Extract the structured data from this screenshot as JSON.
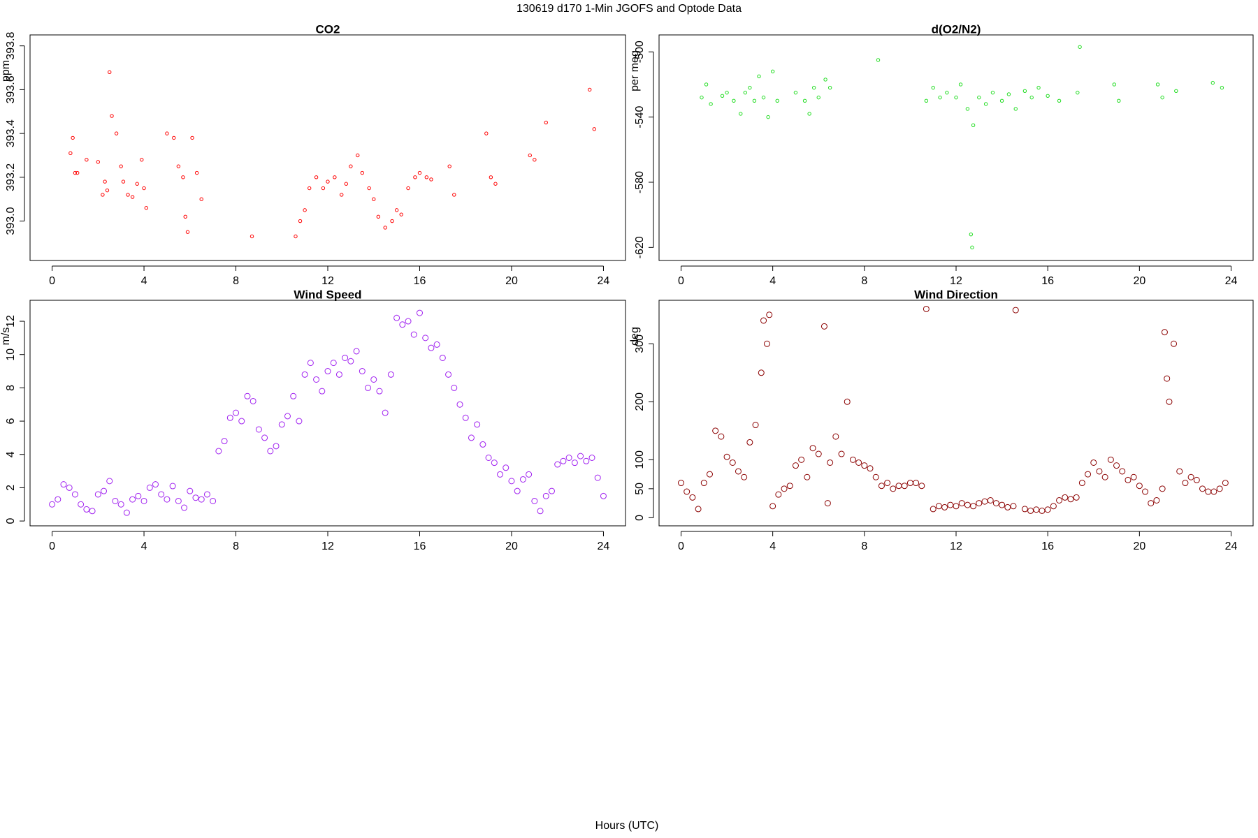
{
  "title": "130619   d170   1-Min  JGOFS and Optode Data",
  "x_label": "Hours (UTC)",
  "chart_data": [
    {
      "type": "scatter",
      "title": "CO2",
      "y_label": "ppm",
      "color": "#ff0000",
      "marker_size": 2.2,
      "xlim": [
        -0.96,
        24.96
      ],
      "xticks": [
        0,
        4,
        8,
        12,
        16,
        20,
        24
      ],
      "ylim": [
        392.82,
        393.85
      ],
      "yticks": [
        {
          "value": 393,
          "label": "393.0"
        },
        393.2,
        393.4,
        393.6,
        393.8
      ],
      "x": [
        0.8,
        0.9,
        1.0,
        1.1,
        1.5,
        2.0,
        2.2,
        2.3,
        2.4,
        2.5,
        2.6,
        2.8,
        3.0,
        3.1,
        3.3,
        3.5,
        3.7,
        3.9,
        4.0,
        4.1,
        5.0,
        5.3,
        5.5,
        5.7,
        5.8,
        5.9,
        6.1,
        6.3,
        6.5,
        8.7,
        10.6,
        10.8,
        11.0,
        11.2,
        11.5,
        11.8,
        12.0,
        12.3,
        12.6,
        12.8,
        13.0,
        13.3,
        13.5,
        13.8,
        14.0,
        14.2,
        14.5,
        14.8,
        15.0,
        15.2,
        15.5,
        15.8,
        16.0,
        16.3,
        16.5,
        17.3,
        17.5,
        18.9,
        19.1,
        19.3,
        20.8,
        21.0,
        21.5,
        23.4,
        23.6
      ],
      "values": [
        393.31,
        393.38,
        393.22,
        393.22,
        393.28,
        393.27,
        393.12,
        393.18,
        393.14,
        393.68,
        393.48,
        393.4,
        393.25,
        393.18,
        393.12,
        393.11,
        393.17,
        393.28,
        393.15,
        393.06,
        393.4,
        393.38,
        393.25,
        393.2,
        393.02,
        392.95,
        393.38,
        393.22,
        393.1,
        392.93,
        392.93,
        393.0,
        393.05,
        393.15,
        393.2,
        393.15,
        393.18,
        393.2,
        393.12,
        393.17,
        393.25,
        393.3,
        393.22,
        393.15,
        393.1,
        393.02,
        392.97,
        393.0,
        393.05,
        393.03,
        393.15,
        393.2,
        393.22,
        393.2,
        393.19,
        393.25,
        393.12,
        393.4,
        393.2,
        393.17,
        393.3,
        393.28,
        393.45,
        393.6,
        393.42
      ]
    },
    {
      "type": "scatter",
      "title": "d(O2/N2)",
      "y_label": "per meg",
      "color": "#22dd22",
      "marker_size": 2.2,
      "xlim": [
        -0.96,
        24.96
      ],
      "xticks": [
        0,
        4,
        8,
        12,
        16,
        20,
        24
      ],
      "ylim": [
        -628,
        -489.6
      ],
      "yticks": [
        -500,
        -540,
        -580,
        -620
      ],
      "x": [
        0.9,
        1.1,
        1.3,
        1.8,
        2.0,
        2.3,
        2.6,
        2.8,
        3.0,
        3.2,
        3.4,
        3.6,
        3.8,
        4.0,
        4.2,
        5.0,
        5.4,
        5.6,
        5.8,
        6.0,
        6.3,
        6.5,
        8.6,
        10.7,
        11.0,
        11.3,
        11.6,
        12.0,
        12.2,
        12.5,
        12.65,
        12.7,
        12.75,
        13.0,
        13.3,
        13.6,
        14.0,
        14.3,
        14.6,
        15.0,
        15.3,
        15.6,
        16.0,
        16.5,
        17.3,
        17.4,
        18.9,
        19.1,
        20.8,
        21.0,
        21.6,
        23.2,
        23.6
      ],
      "values": [
        -528,
        -520,
        -532,
        -527,
        -525,
        -530,
        -538,
        -525,
        -522,
        -530,
        -515,
        -528,
        -540,
        -512,
        -530,
        -525,
        -530,
        -538,
        -522,
        -528,
        -517,
        -522,
        -505,
        -530,
        -522,
        -528,
        -525,
        -528,
        -520,
        -535,
        -612,
        -620,
        -545,
        -528,
        -532,
        -525,
        -530,
        -526,
        -535,
        -524,
        -528,
        -522,
        -527,
        -530,
        -525,
        -497,
        -520,
        -530,
        -520,
        -528,
        -524,
        -519,
        -522
      ]
    },
    {
      "type": "scatter",
      "title": "Wind Speed",
      "y_label": "m/s",
      "color": "#a020f0",
      "marker_size": 4,
      "xlim": [
        -0.96,
        24.96
      ],
      "xticks": [
        0,
        4,
        8,
        12,
        16,
        20,
        24
      ],
      "ylim": [
        -0.29,
        13.26
      ],
      "yticks": [
        0,
        2,
        4,
        6,
        8,
        10,
        12
      ],
      "x": [
        0,
        0.25,
        0.5,
        0.75,
        1,
        1.25,
        1.5,
        1.75,
        2,
        2.25,
        2.5,
        2.75,
        3,
        3.25,
        3.5,
        3.75,
        4,
        4.25,
        4.5,
        4.75,
        5,
        5.25,
        5.5,
        5.75,
        6,
        6.25,
        6.5,
        6.75,
        7,
        7.25,
        7.5,
        7.75,
        8,
        8.25,
        8.5,
        8.75,
        9,
        9.25,
        9.5,
        9.75,
        10,
        10.25,
        10.5,
        10.75,
        11,
        11.25,
        11.5,
        11.75,
        12,
        12.25,
        12.5,
        12.75,
        13,
        13.25,
        13.5,
        13.75,
        14,
        14.25,
        14.5,
        14.75,
        15,
        15.25,
        15.5,
        15.75,
        16,
        16.25,
        16.5,
        16.75,
        17,
        17.25,
        17.5,
        17.75,
        18,
        18.25,
        18.5,
        18.75,
        19,
        19.25,
        19.5,
        19.75,
        20,
        20.25,
        20.5,
        20.75,
        21,
        21.25,
        21.5,
        21.75,
        22,
        22.25,
        22.5,
        22.75,
        23,
        23.25,
        23.5,
        23.75,
        24
      ],
      "values": [
        1.0,
        1.3,
        2.2,
        2.0,
        1.6,
        1.0,
        0.7,
        0.6,
        1.6,
        1.8,
        2.4,
        1.2,
        1.0,
        0.5,
        1.3,
        1.5,
        1.2,
        2.0,
        2.2,
        1.6,
        1.3,
        2.1,
        1.2,
        0.8,
        1.8,
        1.4,
        1.3,
        1.6,
        1.2,
        4.2,
        4.8,
        6.2,
        6.5,
        6.0,
        7.5,
        7.2,
        5.5,
        5.0,
        4.2,
        4.5,
        5.8,
        6.3,
        7.5,
        6.0,
        8.8,
        9.5,
        8.5,
        7.8,
        9.0,
        9.5,
        8.8,
        9.8,
        9.6,
        10.2,
        9.0,
        8.0,
        8.5,
        7.8,
        6.5,
        8.8,
        12.2,
        11.8,
        12.0,
        11.2,
        12.5,
        11.0,
        10.4,
        10.6,
        9.8,
        8.8,
        8.0,
        7.0,
        6.2,
        5.0,
        5.8,
        4.6,
        3.8,
        3.5,
        2.8,
        3.2,
        2.4,
        1.8,
        2.5,
        2.8,
        1.2,
        0.6,
        1.5,
        1.8,
        3.4,
        3.6,
        3.8,
        3.5,
        3.9,
        3.6,
        3.8,
        2.6,
        1.5
      ]
    },
    {
      "type": "scatter",
      "title": "Wind Direction",
      "y_label": "deg",
      "color": "#8b0000",
      "marker_size": 4,
      "xlim": [
        -0.96,
        24.96
      ],
      "xticks": [
        0,
        4,
        8,
        12,
        16,
        20,
        24
      ],
      "ylim": [
        -14,
        375
      ],
      "yticks": [
        0,
        50,
        100,
        200,
        300
      ],
      "x": [
        0,
        0.25,
        0.5,
        0.75,
        1,
        1.25,
        1.5,
        1.75,
        2,
        2.25,
        2.5,
        2.75,
        3,
        3.25,
        3.5,
        3.6,
        3.75,
        3.85,
        4,
        4.25,
        4.5,
        4.75,
        5,
        5.25,
        5.5,
        5.75,
        6,
        6.25,
        6.4,
        6.5,
        6.75,
        7,
        7.25,
        7.5,
        7.75,
        8,
        8.25,
        8.5,
        8.75,
        9,
        9.25,
        9.5,
        9.75,
        10,
        10.25,
        10.5,
        10.7,
        11,
        11.25,
        11.5,
        11.75,
        12,
        12.25,
        12.5,
        12.75,
        13,
        13.25,
        13.5,
        13.75,
        14,
        14.25,
        14.5,
        14.6,
        15,
        15.25,
        15.5,
        15.75,
        16,
        16.25,
        16.5,
        16.75,
        17,
        17.25,
        17.5,
        17.75,
        18,
        18.25,
        18.5,
        18.75,
        19,
        19.25,
        19.5,
        19.75,
        20,
        20.25,
        20.5,
        20.75,
        21,
        21.1,
        21.2,
        21.3,
        21.5,
        21.75,
        22,
        22.25,
        22.5,
        22.75,
        23,
        23.25,
        23.5,
        23.75
      ],
      "values": [
        60,
        45,
        35,
        15,
        60,
        75,
        150,
        140,
        105,
        95,
        80,
        70,
        130,
        160,
        250,
        340,
        300,
        350,
        20,
        40,
        50,
        55,
        90,
        100,
        70,
        120,
        110,
        330,
        25,
        95,
        140,
        110,
        200,
        100,
        95,
        90,
        85,
        70,
        55,
        60,
        50,
        55,
        55,
        60,
        60,
        55,
        360,
        15,
        20,
        18,
        22,
        20,
        25,
        22,
        20,
        25,
        28,
        30,
        25,
        22,
        18,
        20,
        358,
        15,
        12,
        14,
        12,
        14,
        20,
        30,
        35,
        32,
        35,
        60,
        75,
        95,
        80,
        70,
        100,
        90,
        80,
        65,
        70,
        55,
        45,
        25,
        30,
        50,
        320,
        240,
        200,
        300,
        80,
        60,
        70,
        65,
        50,
        45,
        45,
        50,
        60
      ]
    }
  ]
}
